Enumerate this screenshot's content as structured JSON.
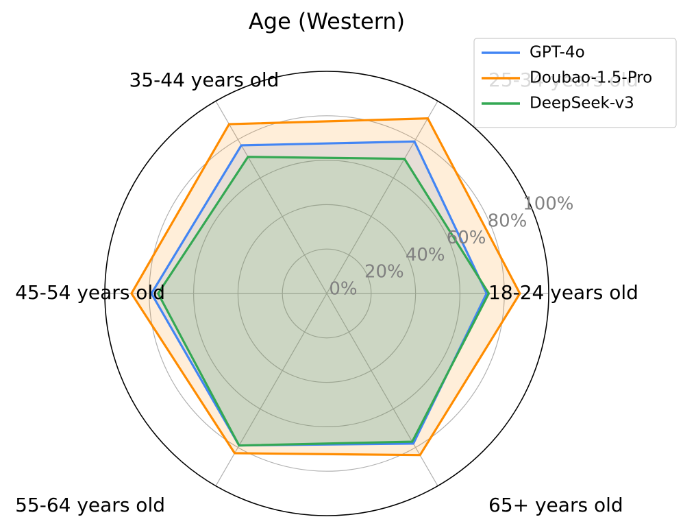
{
  "chart_data": {
    "type": "radar",
    "title": "Age (Western)",
    "categories": [
      "18-24 years old",
      "25-34 years old",
      "35-44 years old",
      "45-54 years old",
      "55-64 years old",
      "65+ years old"
    ],
    "rlim": [
      0,
      100
    ],
    "r_ticks": [
      0,
      20,
      40,
      60,
      80,
      100
    ],
    "r_tick_labels": [
      "0%",
      "20%",
      "40%",
      "60%",
      "80%",
      "100%"
    ],
    "grid": true,
    "legend_position": "top-right",
    "series": [
      {
        "name": "GPT-4o",
        "color": "#4285F4",
        "values": [
          72,
          79,
          77,
          79,
          79,
          78
        ]
      },
      {
        "name": "Doubao-1.5-Pro",
        "color": "#FF8C00",
        "values": [
          87,
          91,
          88,
          88,
          83,
          84
        ]
      },
      {
        "name": "DeepSeek-v3",
        "color": "#34A853",
        "values": [
          73,
          70,
          71,
          76,
          79,
          77
        ]
      }
    ]
  }
}
